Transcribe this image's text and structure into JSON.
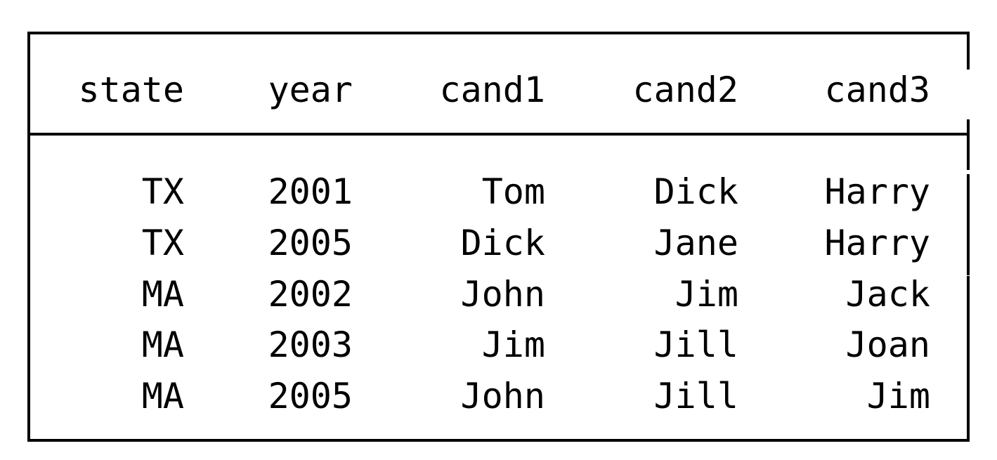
{
  "table": {
    "headers": [
      "state",
      "year",
      "cand1",
      "cand2",
      "cand3"
    ],
    "rows": [
      [
        "TX",
        "2001",
        "Tom",
        "Dick",
        "Harry"
      ],
      [
        "TX",
        "2005",
        "Dick",
        "Jane",
        "Harry"
      ],
      [
        "MA",
        "2002",
        "John",
        "Jim",
        "Jack"
      ],
      [
        "MA",
        "2003",
        "Jim",
        "Jill",
        "Joan"
      ],
      [
        "MA",
        "2005",
        "John",
        "Jill",
        "Jim"
      ]
    ]
  }
}
